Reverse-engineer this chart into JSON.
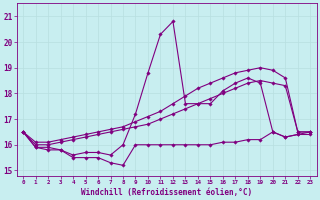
{
  "title": "",
  "xlabel": "Windchill (Refroidissement éolien,°C)",
  "ylabel": "",
  "bg_color": "#c8eef0",
  "line_color": "#800080",
  "grid_color": "#b8dfe0",
  "xlim": [
    -0.5,
    23.5
  ],
  "ylim": [
    14.8,
    21.5
  ],
  "yticks": [
    15,
    16,
    17,
    18,
    19,
    20,
    21
  ],
  "xticks": [
    0,
    1,
    2,
    3,
    4,
    5,
    6,
    7,
    8,
    9,
    10,
    11,
    12,
    13,
    14,
    15,
    16,
    17,
    18,
    19,
    20,
    21,
    22,
    23
  ],
  "series": [
    [
      16.5,
      15.9,
      15.8,
      15.8,
      15.5,
      15.5,
      15.5,
      15.3,
      15.2,
      16.0,
      16.0,
      16.0,
      16.0,
      16.0,
      16.0,
      16.0,
      16.1,
      16.1,
      16.2,
      16.2,
      16.5,
      16.3,
      16.4,
      16.4
    ],
    [
      16.5,
      15.9,
      15.9,
      15.8,
      15.6,
      15.7,
      15.7,
      15.6,
      16.0,
      17.2,
      18.8,
      20.3,
      20.8,
      17.6,
      17.6,
      17.6,
      18.1,
      18.4,
      18.6,
      18.4,
      16.5,
      16.3,
      16.4,
      16.5
    ],
    [
      16.5,
      16.0,
      16.0,
      16.1,
      16.2,
      16.3,
      16.4,
      16.5,
      16.6,
      16.7,
      16.8,
      17.0,
      17.2,
      17.4,
      17.6,
      17.8,
      18.0,
      18.2,
      18.4,
      18.5,
      18.4,
      18.3,
      16.5,
      16.5
    ],
    [
      16.5,
      16.1,
      16.1,
      16.2,
      16.3,
      16.4,
      16.5,
      16.6,
      16.7,
      16.9,
      17.1,
      17.3,
      17.6,
      17.9,
      18.2,
      18.4,
      18.6,
      18.8,
      18.9,
      19.0,
      18.9,
      18.6,
      16.5,
      16.5
    ]
  ]
}
